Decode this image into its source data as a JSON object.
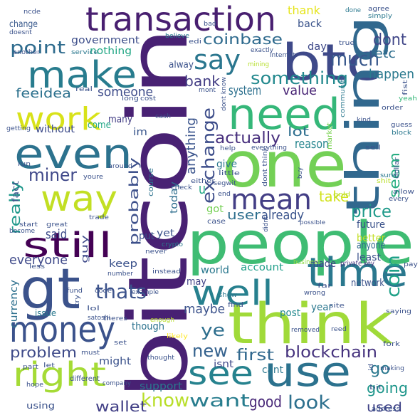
{
  "words": [
    {
      "text": "bitcoin",
      "color": "#482173"
    },
    {
      "text": "people",
      "color": "#3fbc73"
    },
    {
      "text": "one",
      "color": "#73d056"
    },
    {
      "text": "think",
      "color": "#a0da39"
    },
    {
      "text": "gt",
      "color": "#3b528b"
    },
    {
      "text": "btc",
      "color": "#3e4989"
    },
    {
      "text": "even",
      "color": "#2c728e"
    },
    {
      "text": "need",
      "color": "#35b779"
    },
    {
      "text": "thing",
      "color": "#31688e"
    },
    {
      "text": "transaction",
      "color": "#481f70"
    },
    {
      "text": "make",
      "color": "#287c8e"
    },
    {
      "text": "time",
      "color": "#2a788e"
    },
    {
      "text": "use",
      "color": "#2c728e"
    },
    {
      "text": "money",
      "color": "#3b528b"
    },
    {
      "text": "way",
      "color": "#c2df23"
    },
    {
      "text": "still",
      "color": "#440154"
    },
    {
      "text": "work",
      "color": "#d8e219"
    },
    {
      "text": "right",
      "color": "#a5db36"
    },
    {
      "text": "well",
      "color": "#27808e"
    },
    {
      "text": "see",
      "color": "#26828e"
    },
    {
      "text": "mean",
      "color": "#433e85"
    },
    {
      "text": "say",
      "color": "#2a768e"
    },
    {
      "text": "much",
      "color": "#38588c"
    },
    {
      "text": "point",
      "color": "#2f6c8e"
    },
    {
      "text": "something",
      "color": "#23898e"
    },
    {
      "text": "miner",
      "color": "#3f4889"
    },
    {
      "text": "coinbase",
      "color": "#2f6b8e"
    },
    {
      "text": "dont",
      "color": "#404688"
    },
    {
      "text": "etc",
      "color": "#2e6e8e"
    },
    {
      "text": "happen",
      "color": "#29798e"
    },
    {
      "text": "exchange",
      "color": "#3d4d8a"
    },
    {
      "text": "thats",
      "color": "#3b528b"
    },
    {
      "text": "actually",
      "color": "#472f7d"
    },
    {
      "text": "price",
      "color": "#1f9a8a"
    },
    {
      "text": "coin",
      "color": "#1fa188"
    },
    {
      "text": "seem",
      "color": "#26ad81"
    },
    {
      "text": "know",
      "color": "#b8de29"
    },
    {
      "text": "want",
      "color": "#287d8e"
    },
    {
      "text": "look",
      "color": "#2d708e"
    },
    {
      "text": "blockchain",
      "color": "#46337e"
    },
    {
      "text": "new",
      "color": "#34618d"
    },
    {
      "text": "problem",
      "color": "#3e4a89"
    },
    {
      "text": "ye",
      "color": "#2e6f8e"
    },
    {
      "text": "first",
      "color": "#31688e"
    },
    {
      "text": "go",
      "color": "#2a788e"
    },
    {
      "text": "going",
      "color": "#1f968b"
    },
    {
      "text": "used",
      "color": "#404387"
    },
    {
      "text": "wallet",
      "color": "#424086"
    },
    {
      "text": "good",
      "color": "#482878"
    },
    {
      "text": "maybe",
      "color": "#3b528b"
    },
    {
      "text": "someone",
      "color": "#3e4c8a"
    },
    {
      "text": "value",
      "color": "#482475"
    },
    {
      "text": "system",
      "color": "#2d708e"
    },
    {
      "text": "bank",
      "color": "#433d84"
    },
    {
      "text": "lot",
      "color": "#2e6e8e"
    },
    {
      "text": "reason",
      "color": "#25858e"
    },
    {
      "text": "user",
      "color": "#2e6f8e"
    },
    {
      "text": "already",
      "color": "#3a548c"
    },
    {
      "text": "take",
      "color": "#d2e21b"
    },
    {
      "text": "really",
      "color": "#1f988b"
    },
    {
      "text": "said",
      "color": "#3e4c8a"
    },
    {
      "text": "probably",
      "color": "#3c4f8a"
    },
    {
      "text": "anything",
      "color": "#3a548c"
    },
    {
      "text": "everyone",
      "color": "#3e4989"
    },
    {
      "text": "network",
      "color": "#3b528b"
    },
    {
      "text": "account",
      "color": "#1f9e89"
    },
    {
      "text": "thank",
      "color": "#e5e419"
    },
    {
      "text": "back",
      "color": "#3a538b"
    },
    {
      "text": "government",
      "color": "#3d4e8a"
    },
    {
      "text": "nothing",
      "color": "#22a785"
    },
    {
      "text": "feeidea",
      "color": "#2d718e"
    },
    {
      "text": "u",
      "color": "#22a884"
    },
    {
      "text": "give",
      "color": "#2a788e"
    },
    {
      "text": "got",
      "color": "#75d054"
    },
    {
      "text": "future",
      "color": "#3b528b"
    },
    {
      "text": "better",
      "color": "#c2df23"
    },
    {
      "text": "anyone",
      "color": "#31688e"
    },
    {
      "text": "least",
      "color": "#3b528b"
    },
    {
      "text": "made",
      "color": "#404588"
    },
    {
      "text": "keep",
      "color": "#3b528b"
    },
    {
      "text": "may",
      "color": "#414487"
    },
    {
      "text": "world",
      "color": "#2a788e"
    },
    {
      "text": "post",
      "color": "#23898e"
    },
    {
      "text": "year",
      "color": "#2a778e"
    },
    {
      "text": "though",
      "color": "#2c728e"
    },
    {
      "text": "might",
      "color": "#3b528b"
    },
    {
      "text": "cant",
      "color": "#2a768e"
    },
    {
      "text": "isnt",
      "color": "#3f4889"
    },
    {
      "text": "support",
      "color": "#2a788e"
    },
    {
      "text": "currency",
      "color": "#2d708e"
    },
    {
      "text": "without",
      "color": "#3e4c8a"
    },
    {
      "text": "come",
      "color": "#22a785"
    },
    {
      "text": "im",
      "color": "#39568c"
    },
    {
      "text": "many",
      "color": "#433e85"
    },
    {
      "text": "put",
      "color": "#3a548c"
    },
    {
      "text": "yet",
      "color": "#3b528b"
    },
    {
      "text": "today",
      "color": "#2e6e8e"
    },
    {
      "text": "day",
      "color": "#3e4989"
    },
    {
      "text": "alway",
      "color": "#3b528b"
    },
    {
      "text": "change",
      "color": "#38598c"
    },
    {
      "text": "guy",
      "color": "#3e4989"
    },
    {
      "text": "using",
      "color": "#3b528b"
    },
    {
      "text": "issue",
      "color": "#2a788e"
    },
    {
      "text": "fact",
      "color": "#3b528b"
    },
    {
      "text": "mining",
      "color": "#b5de2b"
    },
    {
      "text": "private key",
      "color": "#46327e"
    },
    {
      "text": "different",
      "color": "#3b528b"
    },
    {
      "text": "course",
      "color": "#2c728e"
    },
    {
      "text": "satoshi",
      "color": "#3b528b"
    },
    {
      "text": "case",
      "color": "#3b528b"
    },
    {
      "text": "business",
      "color": "#8fd744"
    },
    {
      "text": "community",
      "color": "#2a788e"
    },
    {
      "text": "market",
      "color": "#7ad151"
    },
    {
      "text": "cash",
      "color": "#3b528b"
    },
    {
      "text": "crypto",
      "color": "#2a788e"
    },
    {
      "text": "possible",
      "color": "#3b528b"
    },
    {
      "text": "doesnt",
      "color": "#3b528b"
    },
    {
      "text": "another",
      "color": "#3b528b"
    },
    {
      "text": "service",
      "color": "#2a788e"
    },
    {
      "text": "exactly",
      "color": "#3b528b"
    },
    {
      "text": "believe",
      "color": "#2a788e"
    },
    {
      "text": "agree",
      "color": "#3b528b"
    },
    {
      "text": "simply",
      "color": "#2a788e"
    },
    {
      "text": "true",
      "color": "#3b528b"
    },
    {
      "text": "done",
      "color": "#2a788e"
    },
    {
      "text": "ncde",
      "color": "#3b528b"
    },
    {
      "text": "bad",
      "color": "#3b528b"
    },
    {
      "text": "internet",
      "color": "#3b528b"
    },
    {
      "text": "order",
      "color": "#3b528b"
    },
    {
      "text": "yeah",
      "color": "#35b779"
    },
    {
      "text": "guess",
      "color": "#3b528b"
    },
    {
      "text": "block",
      "color": "#2a788e"
    },
    {
      "text": "sell",
      "color": "#3b528b"
    },
    {
      "text": "sure",
      "color": "#2a788e"
    },
    {
      "text": "dollar",
      "color": "#3b528b"
    },
    {
      "text": "shit",
      "color": "#b8de29"
    },
    {
      "text": "every",
      "color": "#3b528b"
    },
    {
      "text": "allow",
      "color": "#3b528b"
    },
    {
      "text": "pay",
      "color": "#3b528b"
    },
    {
      "text": "gold",
      "color": "#b8de29"
    },
    {
      "text": "saying",
      "color": "#3b528b"
    },
    {
      "text": "fork",
      "color": "#3b528b"
    },
    {
      "text": "making",
      "color": "#3b528b"
    },
    {
      "text": "bit",
      "color": "#3b528b"
    },
    {
      "text": "address",
      "color": "#3b528b"
    },
    {
      "text": "removed",
      "color": "#3b528b"
    },
    {
      "text": "wrong",
      "color": "#3b528b"
    },
    {
      "text": "far",
      "color": "#3b528b"
    },
    {
      "text": "reed",
      "color": "#3b528b"
    },
    {
      "text": "site",
      "color": "#3b528b"
    },
    {
      "text": "find",
      "color": "#3b528b"
    },
    {
      "text": "show",
      "color": "#2a788e"
    },
    {
      "text": "thought",
      "color": "#3b528b"
    },
    {
      "text": "likely",
      "color": "#fde725"
    },
    {
      "text": "enough",
      "color": "#b8de29"
    },
    {
      "text": "theres",
      "color": "#3b528b"
    },
    {
      "text": "lol",
      "color": "#3b528b"
    },
    {
      "text": "try",
      "color": "#3b528b"
    },
    {
      "text": "code",
      "color": "#3b528b"
    },
    {
      "text": "fund",
      "color": "#3b528b"
    },
    {
      "text": "less",
      "color": "#3b528b"
    },
    {
      "text": "must",
      "color": "#3b528b"
    },
    {
      "text": "set",
      "color": "#3b528b"
    },
    {
      "text": "example",
      "color": "#3b528b"
    },
    {
      "text": "number",
      "color": "#3b528b"
    },
    {
      "text": "instead",
      "color": "#3b528b"
    },
    {
      "text": "never",
      "color": "#3b528b"
    },
    {
      "text": "company",
      "color": "#3b528b"
    },
    {
      "text": "part",
      "color": "#3b528b"
    },
    {
      "text": "let",
      "color": "#3b528b"
    },
    {
      "text": "hope",
      "color": "#3b528b"
    },
    {
      "text": "start",
      "color": "#3b528b"
    },
    {
      "text": "become",
      "color": "#3b528b"
    },
    {
      "text": "great",
      "color": "#3b528b"
    },
    {
      "text": "trade",
      "color": "#3b528b"
    },
    {
      "text": "check",
      "color": "#3b528b"
    },
    {
      "text": "either",
      "color": "#3b528b"
    },
    {
      "text": "little",
      "color": "#3b528b"
    },
    {
      "text": "segwit",
      "color": "#3b528b"
    },
    {
      "text": "end",
      "color": "#3b528b"
    },
    {
      "text": "youre",
      "color": "#3b528b"
    },
    {
      "text": "around",
      "color": "#3b528b"
    },
    {
      "text": "run",
      "color": "#3b528b"
    },
    {
      "text": "getting",
      "color": "#3b528b"
    },
    {
      "text": "real",
      "color": "#3b528b"
    },
    {
      "text": "long",
      "color": "#3b528b"
    },
    {
      "text": "cost",
      "color": "#3b528b"
    },
    {
      "text": "everything",
      "color": "#3b528b"
    },
    {
      "text": "help",
      "color": "#3b528b"
    },
    {
      "text": "dont think",
      "color": "#3b528b"
    },
    {
      "text": "dont know",
      "color": "#3b528b"
    },
    {
      "text": "kind",
      "color": "#3b528b"
    },
    {
      "text": "buy",
      "color": "#3b528b"
    },
    {
      "text": "edi",
      "color": "#3b528b"
    },
    {
      "text": "mont",
      "color": "#3b528b"
    },
    {
      "text": "didnt",
      "color": "#3b528b"
    },
    {
      "text": "fist",
      "color": "#3b528b"
    },
    {
      "text": "id",
      "color": "#3b528b"
    }
  ]
}
